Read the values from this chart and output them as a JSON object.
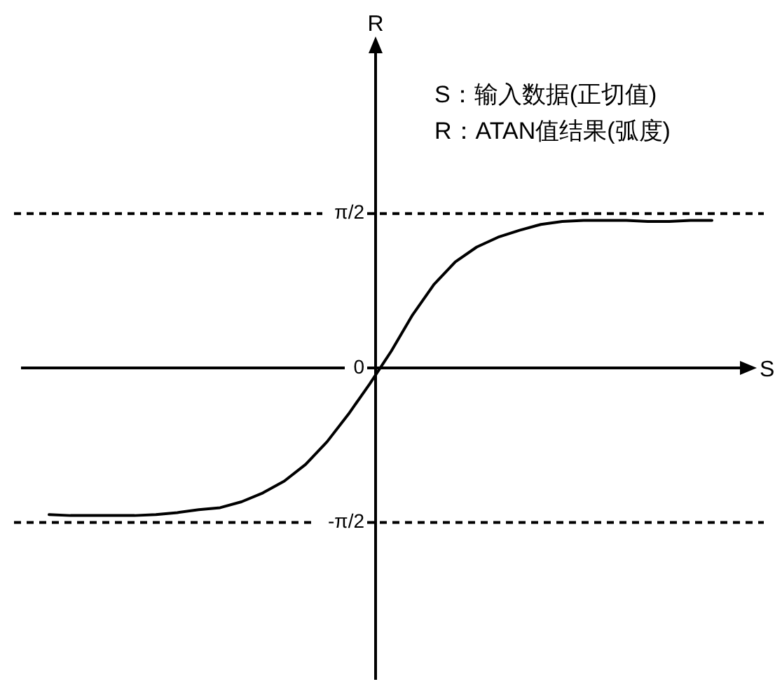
{
  "chart_data": {
    "type": "line",
    "xlabel": "S",
    "ylabel": "R",
    "annotations": [
      "S：输入数据(正切值)",
      "R：ATAN值结果(弧度)"
    ],
    "categories": [
      null,
      null,
      null,
      null,
      null,
      null,
      null,
      null,
      null,
      null,
      null,
      null,
      null,
      null,
      null,
      null,
      null,
      null,
      null,
      null,
      null,
      null,
      null,
      null,
      null,
      null,
      null,
      null,
      null,
      null,
      null,
      null
    ],
    "series": [
      {
        "color": "#000000",
        "values": [
          -1.49,
          -1.5,
          -1.5,
          -1.5,
          -1.5,
          -1.49,
          -1.47,
          -1.44,
          -1.42,
          -1.36,
          -1.27,
          -1.15,
          -0.98,
          -0.75,
          -0.47,
          -0.16,
          0.17,
          0.54,
          0.85,
          1.08,
          1.23,
          1.33,
          1.4,
          1.46,
          1.49,
          1.5,
          1.5,
          1.5,
          1.49,
          1.49,
          1.5,
          1.5
        ]
      }
    ],
    "ylim": [
      -3.17,
      3.2
    ],
    "yticks": [
      {
        "value": -1.5708,
        "label": "-π/2"
      },
      0,
      {
        "value": 1.5708,
        "label": "π/2"
      }
    ],
    "ref_lines": [
      {
        "axis": "y",
        "value": 1.5708,
        "color": "#000000",
        "line_style": "dashed"
      },
      {
        "axis": "y",
        "value": -1.5708,
        "color": "#000000",
        "line_style": "dashed"
      }
    ],
    "grid": false
  }
}
